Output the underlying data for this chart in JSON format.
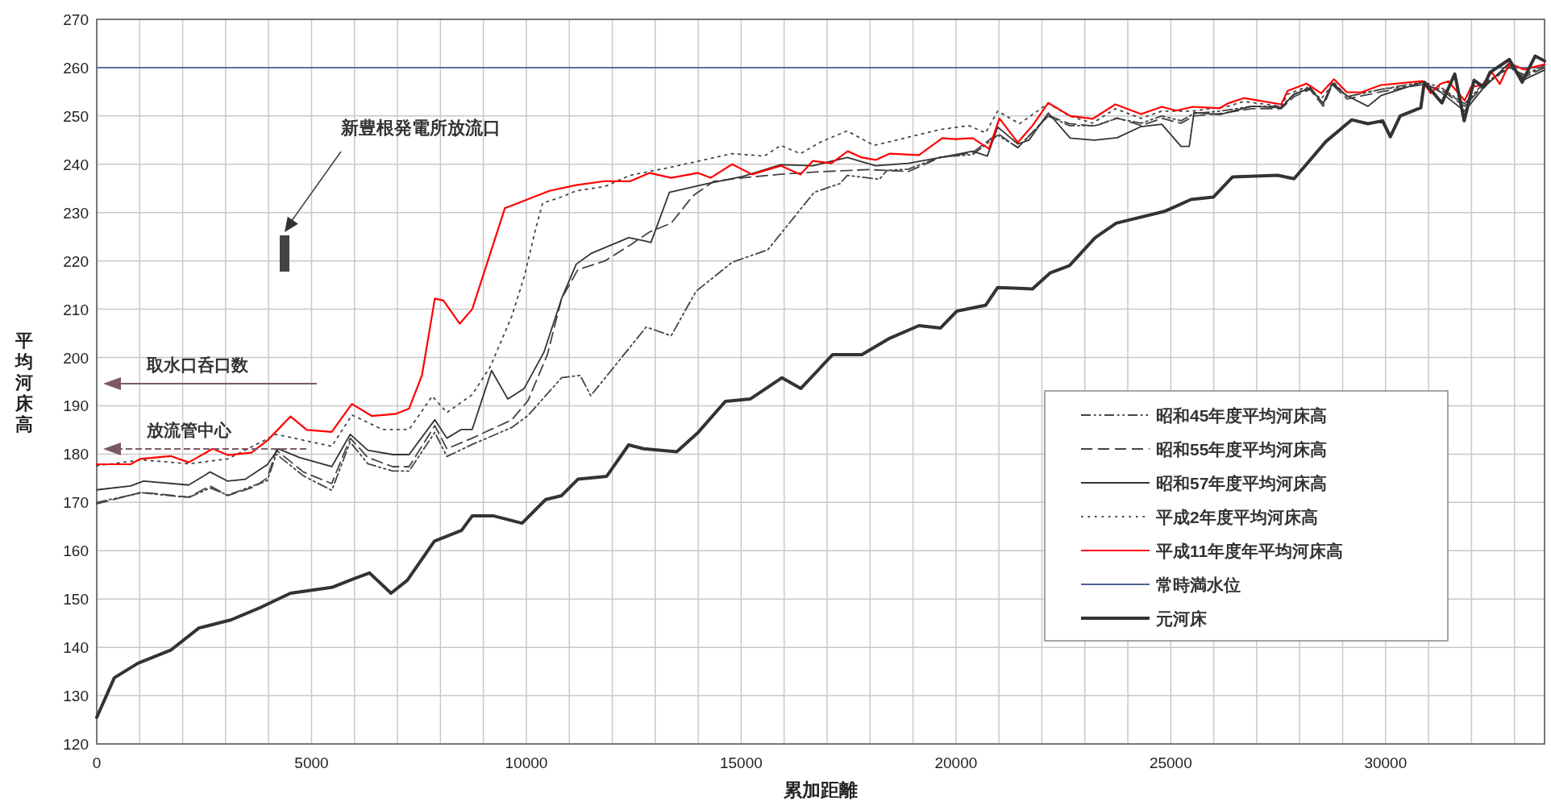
{
  "chart_data": {
    "type": "line",
    "xlabel": "累加距離",
    "ylabel": "平均河床高",
    "xlim": [
      0,
      33700
    ],
    "ylim": [
      120,
      270
    ],
    "xticks": [
      0,
      {
        "value": 1000,
        "label": null
      },
      {
        "value": 2000,
        "label": null
      },
      {
        "value": 3000,
        "label": null
      },
      {
        "value": 4000,
        "label": null
      },
      5000,
      {
        "value": 6000,
        "label": null
      },
      {
        "value": 7000,
        "label": null
      },
      {
        "value": 8000,
        "label": null
      },
      {
        "value": 9000,
        "label": null
      },
      10000,
      {
        "value": 11000,
        "label": null
      },
      {
        "value": 12000,
        "label": null
      },
      {
        "value": 13000,
        "label": null
      },
      {
        "value": 14000,
        "label": null
      },
      15000,
      {
        "value": 16000,
        "label": null
      },
      {
        "value": 17000,
        "label": null
      },
      {
        "value": 18000,
        "label": null
      },
      {
        "value": 19000,
        "label": null
      },
      20000,
      {
        "value": 21000,
        "label": null
      },
      {
        "value": 22000,
        "label": null
      },
      {
        "value": 23000,
        "label": null
      },
      {
        "value": 24000,
        "label": null
      },
      25000,
      {
        "value": 26000,
        "label": null
      },
      {
        "value": 27000,
        "label": null
      },
      {
        "value": 28000,
        "label": null
      },
      {
        "value": 29000,
        "label": null
      },
      30000,
      {
        "value": 31000,
        "label": null
      },
      {
        "value": 32000,
        "label": null
      },
      {
        "value": 33000,
        "label": null
      }
    ],
    "yticks": [
      120,
      130,
      140,
      150,
      160,
      170,
      180,
      190,
      200,
      210,
      220,
      230,
      240,
      250,
      260,
      270
    ],
    "grid": true,
    "legend": "bottom right",
    "series": [
      {
        "name": "昭和45年度平均河床高",
        "color": "#444444",
        "line_style": "dashdot",
        "x": [
          0,
          1050,
          2140,
          2640,
          3050,
          3970,
          4180,
          4810,
          5470,
          5900,
          6310,
          6890,
          7270,
          7870,
          8150,
          8740,
          9660,
          10040,
          10820,
          11250,
          11500,
          12790,
          13370,
          13950,
          14790,
          15620,
          16700,
          17300,
          17470,
          18220,
          18390,
          18890,
          19640,
          20390,
          20970,
          21440,
          22150,
          22640,
          23240,
          23750,
          24310,
          24790,
          25240,
          25540,
          26140,
          26890,
          27570,
          27870,
          28240,
          28550,
          28760,
          29100,
          29890,
          30860,
          31270,
          31840,
          32250,
          32880,
          33220,
          33700
        ],
        "values": [
          170,
          172,
          171,
          173,
          171.5,
          174.5,
          180,
          175.5,
          172.5,
          182.5,
          178,
          176.5,
          176.5,
          184.5,
          179.5,
          182,
          185.5,
          188,
          195.8,
          196.3,
          192.1,
          206.3,
          204.5,
          213.7,
          219.7,
          222.3,
          234.2,
          236,
          237.7,
          236.9,
          238.7,
          239,
          241.5,
          242,
          246,
          243.5,
          250,
          248,
          248,
          249.5,
          248.5,
          250,
          249,
          250.5,
          251,
          252,
          252,
          254.5,
          256,
          252.5,
          257,
          254,
          255.5,
          257,
          256,
          252.5,
          256.5,
          260,
          258.5,
          260.5
        ]
      },
      {
        "name": "昭和55年度平均河床高",
        "color": "#444444",
        "line_style": "dashed",
        "x": [
          0,
          1050,
          2140,
          2640,
          3050,
          3690,
          3970,
          4180,
          4810,
          5470,
          5900,
          6310,
          6890,
          7270,
          7870,
          8150,
          8740,
          9660,
          10040,
          10490,
          10820,
          11200,
          11830,
          12420,
          12870,
          13370,
          13880,
          14370,
          15040,
          15880,
          16720,
          17970,
          18890,
          19640,
          20390,
          20970,
          21440,
          22150,
          22640,
          23240,
          23750,
          24310,
          24790,
          25240,
          25540,
          26140,
          26890,
          27570,
          27870,
          28240,
          28550,
          28760,
          29100,
          29890,
          30860,
          31270,
          31840,
          32250,
          32880,
          33220,
          33700
        ],
        "values": [
          169.7,
          172.1,
          171.1,
          173.4,
          171.4,
          173.3,
          175.1,
          180.8,
          176.3,
          173.9,
          183.3,
          179.3,
          177.4,
          177.4,
          185.9,
          181.1,
          183.3,
          187.1,
          191.1,
          200.6,
          212.2,
          218.2,
          220,
          223.3,
          226,
          227.8,
          233.5,
          236.5,
          237.2,
          237.9,
          238.4,
          238.9,
          238.5,
          241.4,
          242.4,
          246.4,
          243.4,
          250.1,
          248.4,
          247.9,
          249.6,
          248,
          249.5,
          248.5,
          250,
          250.5,
          251.5,
          251.5,
          254,
          255.5,
          252,
          256.5,
          253.5,
          255,
          256.5,
          255.5,
          252,
          256,
          260.5,
          258,
          260
        ]
      },
      {
        "name": "昭和57年度平均河床高",
        "color": "#333333",
        "line_style": "solid",
        "x": [
          0,
          790,
          1090,
          2140,
          2640,
          3050,
          3460,
          3970,
          4230,
          4720,
          5470,
          5900,
          6310,
          6890,
          7270,
          7870,
          8150,
          8490,
          8740,
          9190,
          9570,
          9950,
          10410,
          10820,
          11160,
          11500,
          12380,
          12710,
          12900,
          13330,
          14210,
          15040,
          15920,
          16670,
          17470,
          18130,
          18890,
          19640,
          20390,
          20730,
          20970,
          21440,
          21700,
          22150,
          22660,
          23220,
          23750,
          24310,
          24790,
          25240,
          25430,
          25540,
          26140,
          26890,
          27570,
          27870,
          28240,
          28550,
          28760,
          29100,
          29590,
          29890,
          30860,
          31270,
          31840,
          32250,
          32880,
          33220,
          33700
        ],
        "values": [
          172.6,
          173.4,
          174.4,
          173.6,
          176.3,
          174.4,
          174.8,
          177.8,
          181.1,
          179.3,
          177.4,
          184.1,
          180.8,
          179.9,
          179.9,
          187.1,
          183.3,
          185.1,
          185.1,
          197.3,
          191.4,
          193.6,
          201.1,
          212.2,
          219.3,
          221.5,
          224.8,
          224.2,
          223.8,
          234.2,
          236,
          237.5,
          239.9,
          239.7,
          241.4,
          239.7,
          240.2,
          241.4,
          242.7,
          241.7,
          247.7,
          244.2,
          245,
          250.6,
          245.4,
          245,
          245.5,
          247.8,
          248.3,
          243.7,
          243.7,
          250.7,
          250.3,
          252,
          251.7,
          254.5,
          255.7,
          252.6,
          256.7,
          254.2,
          252,
          254.2,
          257,
          255,
          251,
          255.5,
          261,
          257.5,
          259.5
        ]
      },
      {
        "name": "平成2年度平均河床高",
        "color": "#444444",
        "line_style": "dotted",
        "x": [
          0,
          1050,
          2140,
          3050,
          4180,
          5470,
          5940,
          6650,
          7270,
          7810,
          8150,
          8740,
          9160,
          9660,
          9950,
          10210,
          10380,
          10750,
          11160,
          11830,
          12410,
          13370,
          14790,
          15540,
          15920,
          16380,
          16870,
          17470,
          18090,
          19640,
          20300,
          20690,
          20970,
          21480,
          22150,
          22640,
          23180,
          23710,
          24310,
          24790,
          25510,
          26330,
          26700,
          27570,
          27720,
          28160,
          28500,
          28800,
          29100,
          29890,
          30860,
          31270,
          31840,
          32250,
          32880,
          33220,
          33700
        ],
        "values": [
          177.6,
          178.8,
          178,
          179,
          184.1,
          181.6,
          188.1,
          185.1,
          185.1,
          192,
          188.6,
          192.3,
          198.1,
          208.5,
          216.7,
          226.4,
          232,
          233,
          234.5,
          235.4,
          237.7,
          239.4,
          242.2,
          241.7,
          243.9,
          242.2,
          244.7,
          246.9,
          243.9,
          247.2,
          248,
          246.5,
          251,
          248.4,
          252.6,
          250,
          248.5,
          251.5,
          249.5,
          251,
          251,
          252,
          253,
          252,
          254.5,
          256,
          253.5,
          257,
          254,
          255.5,
          256.5,
          255.5,
          252.5,
          256,
          260,
          258.5,
          260
        ]
      },
      {
        "name": "平成11年度年平均河床高",
        "color": "#ff0000",
        "line_style": "solid",
        "x": [
          0,
          790,
          1010,
          1720,
          2140,
          2340,
          2700,
          3050,
          3600,
          3970,
          4510,
          4890,
          5470,
          5940,
          6400,
          6950,
          7270,
          7570,
          7870,
          8070,
          8450,
          8740,
          9500,
          10540,
          11160,
          11830,
          12420,
          12870,
          13370,
          13990,
          14290,
          14790,
          15250,
          15920,
          16380,
          16670,
          17100,
          17480,
          17810,
          18130,
          18460,
          19140,
          19680,
          19980,
          20390,
          20770,
          21010,
          21440,
          21780,
          22150,
          22660,
          23180,
          23710,
          24310,
          24790,
          25130,
          25510,
          26140,
          26330,
          26700,
          27570,
          27720,
          28160,
          28500,
          28800,
          29100,
          29440,
          29890,
          30860,
          31050,
          31270,
          31460,
          31840,
          31990,
          32250,
          32470,
          32660,
          32880,
          33220,
          33700
        ],
        "values": [
          177.9,
          177.9,
          179,
          179.6,
          178.3,
          179.3,
          181.1,
          179.8,
          180.3,
          182.8,
          187.8,
          185,
          184.6,
          190.4,
          187.9,
          188.3,
          189.4,
          196.3,
          212.2,
          211.8,
          207,
          210,
          230.9,
          234.5,
          235.7,
          236.5,
          236.5,
          238.2,
          237.2,
          238.2,
          237.2,
          240,
          237.9,
          239.7,
          237.9,
          240.7,
          240.2,
          242.7,
          241.4,
          240.9,
          242.2,
          241.9,
          245.4,
          245.2,
          245.4,
          243.2,
          249.5,
          244.5,
          248,
          252.7,
          250,
          249.4,
          252.4,
          250.4,
          251.9,
          251.1,
          251.9,
          251.6,
          252.6,
          253.7,
          252.4,
          255.2,
          256.7,
          254.7,
          257.6,
          254.9,
          254.9,
          256.4,
          257.2,
          254.7,
          256.6,
          257.2,
          253.2,
          256,
          256.4,
          259.1,
          256.6,
          260.9,
          259.6,
          260.7
        ]
      },
      {
        "name": "元河床",
        "color": "#333333",
        "line_style": "solid",
        "x": [
          0,
          410,
          960,
          1720,
          2380,
          3130,
          3800,
          4510,
          5470,
          5980,
          6350,
          6850,
          7230,
          7860,
          8490,
          8740,
          9240,
          9900,
          10450,
          10820,
          11200,
          11870,
          12380,
          12730,
          13500,
          14000,
          14630,
          15210,
          15950,
          16390,
          17130,
          17810,
          18460,
          19140,
          19640,
          20020,
          20690,
          20970,
          21780,
          22190,
          22640,
          23240,
          23730,
          24870,
          25470,
          25990,
          26440,
          27490,
          27870,
          28610,
          29210,
          29590,
          29930,
          30110,
          30340,
          30820,
          30900,
          31310,
          31610,
          31830,
          32060,
          32280,
          32430,
          32880,
          33180,
          33480,
          33700
        ],
        "values": [
          125.5,
          133.7,
          136.7,
          139.4,
          144,
          145.7,
          148.2,
          151.2,
          152.4,
          154.2,
          155.4,
          151.2,
          153.9,
          162,
          164.2,
          167.2,
          167.2,
          165.7,
          170.6,
          171.4,
          174.8,
          175.4,
          181.9,
          181.1,
          180.5,
          184.5,
          190.9,
          191.4,
          195.8,
          193.6,
          200.6,
          200.6,
          204,
          206.6,
          206.1,
          209.6,
          210.8,
          214.5,
          214.2,
          217.5,
          219,
          224.8,
          227.8,
          230.3,
          232.7,
          233.2,
          237.4,
          237.7,
          237,
          244.7,
          249.2,
          248.4,
          249,
          245.7,
          250,
          251.7,
          257,
          252.7,
          258.7,
          249,
          257.4,
          256,
          259,
          261.7,
          257,
          262.4,
          261.4
        ]
      }
    ],
    "ref_lines": [
      {
        "axis": "y",
        "value": 260,
        "label": "常時満水位",
        "color": "#4a6690"
      }
    ],
    "annotations": [
      "新豊根発電所放流口",
      "取水口呑口数",
      "放流管中心"
    ]
  }
}
